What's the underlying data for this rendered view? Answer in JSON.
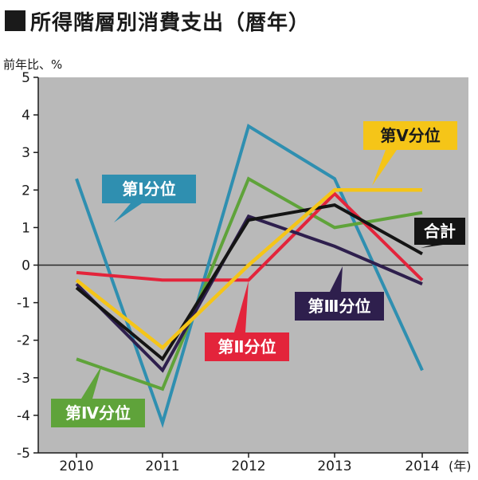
{
  "title": "所得階層別消費支出（暦年）",
  "y_unit": "前年比、%",
  "colors": {
    "background": "#b9b9b9",
    "zero_line": "#2a2a2a",
    "q1": "#2f8fb0",
    "q2": "#e3243b",
    "q3": "#2e1f4d",
    "q4": "#5fa33a",
    "q5": "#f5c518",
    "total": "#141414"
  },
  "chart_data": {
    "type": "line",
    "x": [
      "2010",
      "2011",
      "2012",
      "2013",
      "2014"
    ],
    "x_suffix": "(年)",
    "ylabel": "前年比、%",
    "ylim": [
      -5,
      5
    ],
    "yticks": [
      "5",
      "4",
      "3",
      "2",
      "1",
      "0",
      "-1",
      "-2",
      "-3",
      "-4",
      "-5"
    ],
    "grid": false,
    "series": [
      {
        "name": "第Ⅰ分位",
        "key": "q1",
        "values": [
          2.3,
          -4.2,
          3.7,
          2.3,
          -2.8
        ]
      },
      {
        "name": "第Ⅱ分位",
        "key": "q2",
        "values": [
          -0.2,
          -0.4,
          -0.4,
          1.9,
          -0.4
        ]
      },
      {
        "name": "第Ⅲ分位",
        "key": "q3",
        "values": [
          -0.5,
          -2.8,
          1.3,
          0.5,
          -0.5
        ]
      },
      {
        "name": "第Ⅳ分位",
        "key": "q4",
        "values": [
          -2.5,
          -3.3,
          2.3,
          1.0,
          1.4
        ]
      },
      {
        "name": "第Ⅴ分位",
        "key": "q5",
        "values": [
          -0.4,
          -2.2,
          0.0,
          2.0,
          2.0
        ]
      },
      {
        "name": "合計",
        "key": "total",
        "values": [
          -0.6,
          -2.5,
          1.2,
          1.6,
          0.3
        ]
      }
    ]
  }
}
